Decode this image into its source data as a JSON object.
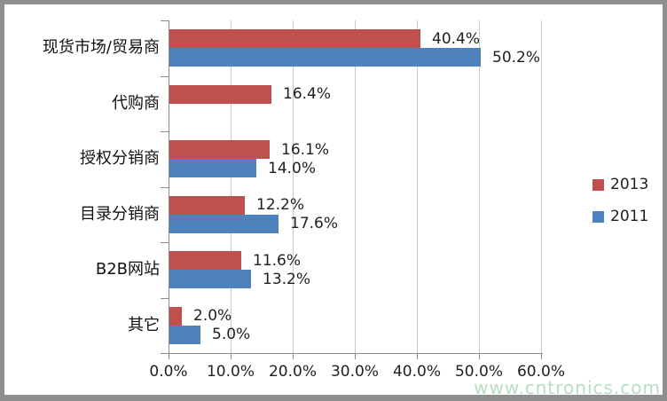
{
  "frame": {
    "border_color": "#8e8e8e",
    "background": "#ffffff"
  },
  "watermark": {
    "text": "www.cntronics.com",
    "color": "#b6dfc4"
  },
  "chart_data": {
    "type": "bar",
    "orientation": "horizontal",
    "title": "",
    "categories": [
      "现货市场/贸易商",
      "代购商",
      "授权分销商",
      "目录分销商",
      "B2B网站",
      "其它"
    ],
    "series": [
      {
        "name": "2013",
        "color": "#C0504D",
        "values": [
          40.4,
          16.4,
          16.1,
          12.2,
          11.6,
          2.0
        ],
        "labels": [
          "40.4%",
          "16.4%",
          "16.1%",
          "12.2%",
          "11.6%",
          "2.0%"
        ]
      },
      {
        "name": "2011",
        "color": "#4F81BD",
        "values": [
          50.2,
          null,
          14.0,
          17.6,
          13.2,
          5.0
        ],
        "labels": [
          "50.2%",
          null,
          "14.0%",
          "17.6%",
          "13.2%",
          "5.0%"
        ]
      }
    ],
    "xlim": [
      0,
      60
    ],
    "x_ticks": [
      "0.0%",
      "10.0%",
      "20.0%",
      "30.0%",
      "40.0%",
      "50.0%",
      "60.0%"
    ],
    "grid": true,
    "gridline_color": "#c9c9c9",
    "axis_color": "#8a8a8a",
    "legend_position": "right"
  }
}
